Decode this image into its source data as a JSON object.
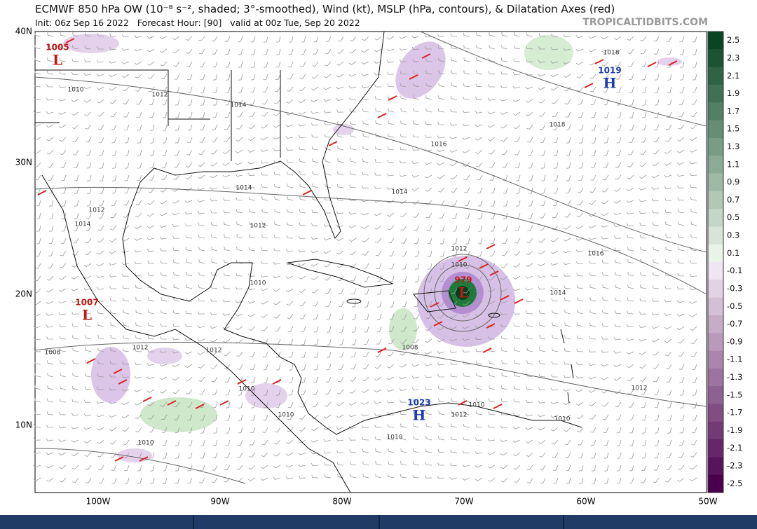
{
  "header": {
    "title": "ECMWF 850 hPa OW (10⁻⁸ s⁻², shaded; 3°-smoothed), Wind (kt), MSLP (hPa, contours), & Dilatation Axes (red)",
    "subtitle": "Init: 06z Sep 16 2022   Forecast Hour: [90]   valid at 00z Tue, Sep 20 2022",
    "watermark": "TROPICALTIDBITS.COM"
  },
  "map": {
    "lat_labels": [
      "40N",
      "30N",
      "20N",
      "10N"
    ],
    "lon_labels": [
      "100W",
      "90W",
      "80W",
      "70W",
      "60W",
      "50W"
    ],
    "pressure_centers": [
      {
        "pressure": "1005",
        "letter": "L"
      },
      {
        "pressure": "1019",
        "letter": "H"
      },
      {
        "pressure": "1007",
        "letter": "L"
      },
      {
        "pressure": "979",
        "letter": "L"
      },
      {
        "pressure": "1023",
        "letter": "H"
      }
    ],
    "contour_labels": [
      "1010",
      "1012",
      "1014",
      "1016",
      "1018",
      "1018",
      "1014",
      "1014",
      "1012",
      "1012",
      "1014",
      "1012",
      "1010",
      "1016",
      "1014",
      "1010",
      "1012",
      "1012",
      "1008",
      "1008",
      "1010",
      "1010",
      "1010",
      "1012",
      "1010",
      "1010",
      "1012",
      "1010"
    ]
  },
  "colorbar": {
    "labels": [
      "2.5",
      "2.3",
      "2.1",
      "1.9",
      "1.7",
      "1.5",
      "1.3",
      "1.1",
      "0.9",
      "0.7",
      "0.5",
      "0.3",
      "0.1",
      "-0.1",
      "-0.3",
      "-0.5",
      "-0.7",
      "-0.9",
      "-1.1",
      "-1.3",
      "-1.5",
      "-1.7",
      "-1.9",
      "-2.1",
      "-2.3",
      "-2.5"
    ]
  }
}
